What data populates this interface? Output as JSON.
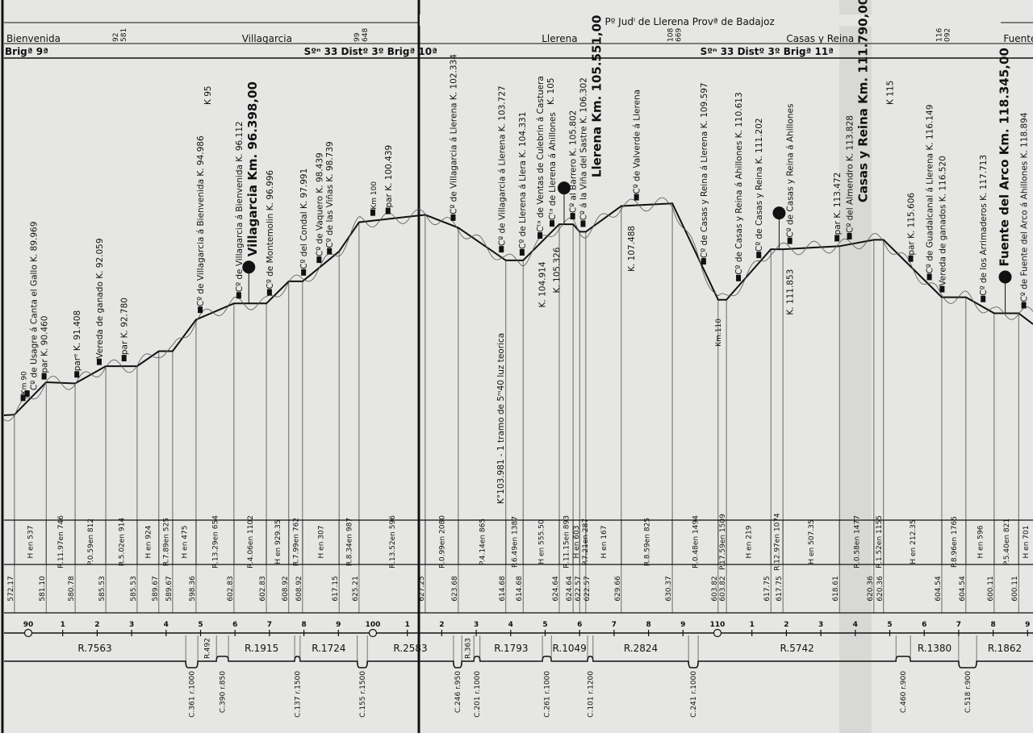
{
  "header": {
    "district_line": "Pº Judˡ de Llerena   Provª de Badajoz",
    "stations": [
      {
        "name": "Bienvenida",
        "km": 88.3
      },
      {
        "name": "Villagarcia",
        "km": 96.2
      },
      {
        "name": "Llerena",
        "km": 104.9
      },
      {
        "name": "Casas y Reina",
        "km": 111.3
      },
      {
        "name": "Fuente del A",
        "km": 118.3
      }
    ],
    "boundary_marks": [
      {
        "top": "92",
        "bottom": "581",
        "km": 92.6
      },
      {
        "top": "99",
        "bottom": "648",
        "km": 99.6
      },
      {
        "top": "108",
        "bottom": "669",
        "km": 108.7
      },
      {
        "top": "116",
        "bottom": "092",
        "km": 116.5
      }
    ],
    "sections": [
      {
        "label": "Brigª 9ª",
        "km": 90.0
      },
      {
        "label": "Sºⁿ 33   Distº 3º  Brigª 10ª",
        "km": 98.0
      },
      {
        "label": "Sºⁿ 33   Distº 3º   Brigª 11ª",
        "km": 109.5
      }
    ]
  },
  "profile_points": [
    [
      89.6,
      572.17
    ],
    [
      90.52,
      581.1
    ],
    [
      91.36,
      580.78
    ],
    [
      92.25,
      585.53
    ],
    [
      93.16,
      585.53
    ],
    [
      93.79,
      589.67
    ],
    [
      94.19,
      589.67
    ],
    [
      94.87,
      598.36
    ],
    [
      95.97,
      602.83
    ],
    [
      96.91,
      602.83
    ],
    [
      97.56,
      608.92
    ],
    [
      97.96,
      608.92
    ],
    [
      99.02,
      617.15
    ],
    [
      99.6,
      625.21
    ],
    [
      101.52,
      627.25
    ],
    [
      102.48,
      623.68
    ],
    [
      103.86,
      614.68
    ],
    [
      104.36,
      614.68
    ],
    [
      105.41,
      624.64
    ],
    [
      105.81,
      624.64
    ],
    [
      106.0,
      622.57
    ],
    [
      106.18,
      622.57
    ],
    [
      107.21,
      629.66
    ],
    [
      108.69,
      630.37
    ],
    [
      110.02,
      603.82
    ],
    [
      110.26,
      603.82
    ],
    [
      111.55,
      617.75
    ],
    [
      111.9,
      617.75
    ],
    [
      113.54,
      618.61
    ],
    [
      114.54,
      620.36
    ],
    [
      114.82,
      620.36
    ],
    [
      116.51,
      604.54
    ],
    [
      117.21,
      604.54
    ],
    [
      118.03,
      600.11
    ],
    [
      118.74,
      600.11
    ]
  ],
  "elevation_labels": [
    "572.17",
    "581.10",
    "580.78",
    "585.53",
    "585.53",
    "589.67",
    "589.67",
    "598.36",
    "602.83",
    "602.83",
    "608.92",
    "608.92",
    "617.15",
    "625.21",
    "627.25",
    "623.68",
    "614.68",
    "614.68",
    "624.64",
    "624.64",
    "622.57",
    "622.57",
    "629.66",
    "630.37",
    "603.82",
    "603.82",
    "617.75",
    "617.75",
    "618.61",
    "620.36",
    "620.36",
    "604.54",
    "604.54",
    "600.11",
    "600.11"
  ],
  "gradients": [
    "H en 537",
    "R.11.97en 746",
    "P.0.59en 812",
    "R.5.02en 914",
    "H en 924",
    "R.7.89en 525",
    "H en 475",
    "R.13.29en 654",
    "R.4.06en 1102",
    "H en 929.35",
    "R.7.99en 762",
    "H en 307",
    "R.8.34en 987",
    "R.13.52en 596",
    "R.0.99en 2080",
    "P.4.14en 865",
    "P.6.49en 1387",
    "H en 555.50",
    "R.11.15en 893",
    "H en 603",
    "P.7.21en 287",
    "H en 167",
    "R.8.59en 825",
    "R.0.48en 1494",
    "P.17.59en 1509",
    "H en 219",
    "R.12.97en 1074",
    "H en 507.35",
    "R.0.58en 1477",
    "R.1.52en 1155",
    "H en 212.35",
    "P.8.96en 1765",
    "H en 596",
    "P.5.40en 821",
    "H en 701"
  ],
  "annotations": [
    {
      "text": "Km 90",
      "km": 89.85,
      "pos": "above",
      "style": "sm"
    },
    {
      "text": "Cº de Usagre á Canta el Gallo  K. 89.969",
      "km": 89.97,
      "pos": "above"
    },
    {
      "text": "par  K. 90.460",
      "km": 90.46,
      "pos": "above"
    },
    {
      "text": "parᵉ K. 91.408",
      "km": 91.41,
      "pos": "above"
    },
    {
      "text": "Vereda  de  ganado  K. 92.059",
      "km": 92.06,
      "pos": "above"
    },
    {
      "text": "par  K. 92.780",
      "km": 92.78,
      "pos": "above"
    },
    {
      "text": "Cº de Villagarcia á Bienvenida  K. 94.986",
      "km": 94.99,
      "pos": "above"
    },
    {
      "text": "K 95",
      "km": 95.2,
      "pos": "top"
    },
    {
      "text": "Cº de Villagarcia á Bienvenida  K. 96.112",
      "km": 96.11,
      "pos": "above"
    },
    {
      "text": "Villagarcia Km. 96.398,00",
      "km": 96.4,
      "pos": "above",
      "style": "big"
    },
    {
      "text": "Cº de Montemolin  K. 96.996",
      "km": 97.0,
      "pos": "above"
    },
    {
      "text": "Cº del Condal  K. 97.991",
      "km": 97.99,
      "pos": "above"
    },
    {
      "text": "Cº de Vaquero  K. 98.439",
      "km": 98.44,
      "pos": "above"
    },
    {
      "text": "Cº de las Viñas  K. 98.739",
      "km": 98.74,
      "pos": "above"
    },
    {
      "text": "Km 100",
      "km": 100.0,
      "pos": "above",
      "style": "sm"
    },
    {
      "text": "par  K. 100.439",
      "km": 100.44,
      "pos": "above"
    },
    {
      "text": "Cº de Villagarcia á Llerena  K. 102.334",
      "km": 102.33,
      "pos": "above"
    },
    {
      "text": "Cº de Villagarcia á Llerena  K. 103.727",
      "km": 103.73,
      "pos": "above"
    },
    {
      "text": "Cº de Llerena á Llera  K. 104.331",
      "km": 104.33,
      "pos": "above"
    },
    {
      "text": "Cᵗᵃ de Ventas de Culebrin á Castuera",
      "km": 104.85,
      "pos": "above"
    },
    {
      "text": "K. 105",
      "km": 105.1,
      "pos": "top"
    },
    {
      "text": "Cᵗᵃ de Llerena á Ahillones",
      "km": 105.2,
      "pos": "above"
    },
    {
      "text": "Llerena Km. 105.551,00",
      "km": 105.55,
      "pos": "above",
      "style": "big"
    },
    {
      "text": "Cº al Barrero  K. 105.802",
      "km": 105.8,
      "pos": "above"
    },
    {
      "text": "Cº á la Viña del Sastre  K. 106.302",
      "km": 106.1,
      "pos": "above"
    },
    {
      "text": "Cº de Valverde á Llerena",
      "km": 107.65,
      "pos": "above"
    },
    {
      "text": "K. 104.914",
      "km": 104.91,
      "pos": "below"
    },
    {
      "text": "K. 105.326",
      "km": 105.33,
      "pos": "below"
    },
    {
      "text": "K. 107.488",
      "km": 107.49,
      "pos": "below"
    },
    {
      "text": "K°103.981 - 1 tramo de 5ᵐ40 luz teorica",
      "km": 103.7,
      "pos": "below",
      "style": "long"
    },
    {
      "text": "Cº de Casas y Reina á Llerena  K. 109.597",
      "km": 109.6,
      "pos": "above"
    },
    {
      "text": "Km.110",
      "km": 110.0,
      "pos": "below",
      "style": "sm"
    },
    {
      "text": "Cº de Casas y Reina á Ahillones  K. 110.613",
      "km": 110.61,
      "pos": "above"
    },
    {
      "text": "Cº de Casas y Reina  K. 111.202",
      "km": 111.2,
      "pos": "above"
    },
    {
      "text": "Casas y Reina Km. 111.790,00",
      "km": 111.79,
      "pos": "above",
      "style": "big"
    },
    {
      "text": "Cº de Casas y Reina á Ahillones",
      "km": 112.1,
      "pos": "above"
    },
    {
      "text": "K. 111.853",
      "km": 112.1,
      "pos": "below"
    },
    {
      "text": "par  K. 113.472",
      "km": 113.47,
      "pos": "above"
    },
    {
      "text": "Cº del Almendro  K. 113.828",
      "km": 113.83,
      "pos": "above"
    },
    {
      "text": "K 115",
      "km": 115.0,
      "pos": "top"
    },
    {
      "text": "par  K. 115.606",
      "km": 115.61,
      "pos": "above"
    },
    {
      "text": "Cº de Guadalcanal á Llerena  K. 116.149",
      "km": 116.15,
      "pos": "above"
    },
    {
      "text": "Vereda de ganados  K. 116.520",
      "km": 116.52,
      "pos": "above"
    },
    {
      "text": "Cº de los Arrimaderos  K. 117.713",
      "km": 117.71,
      "pos": "above"
    },
    {
      "text": "Fuente del Arco Km. 118.345,00",
      "km": 118.35,
      "pos": "above",
      "style": "big"
    },
    {
      "text": "Cº de Fuente del Arco á Ahillones  K. 118.894",
      "km": 118.89,
      "pos": "above"
    }
  ],
  "stations_dots": [
    96.4,
    105.55,
    111.79,
    118.35
  ],
  "km_scale": {
    "start": 90,
    "end": 119,
    "major_labels": {
      "90": "90",
      "100": "100",
      "110": "110"
    }
  },
  "alignment": {
    "curves": [
      {
        "label": "C.361 r.1000",
        "from": 94.57,
        "to": 94.92,
        "dir": "down"
      },
      {
        "label": "C.390 r.850",
        "from": 95.46,
        "to": 95.81,
        "dir": "up"
      },
      {
        "label": "C.137 r.1500",
        "from": 97.73,
        "to": 97.89,
        "dir": "up"
      },
      {
        "label": "C.155 r.1500",
        "from": 99.55,
        "to": 99.84,
        "dir": "down"
      },
      {
        "label": "C.246 r.950",
        "from": 102.34,
        "to": 102.58,
        "dir": "down"
      },
      {
        "label": "C.201 r.1000",
        "from": 102.93,
        "to": 103.11,
        "dir": "up"
      },
      {
        "label": "C.261 r.1000",
        "from": 104.92,
        "to": 105.18,
        "dir": "up"
      },
      {
        "label": "C.101 r.1200",
        "from": 106.23,
        "to": 106.39,
        "dir": "up"
      },
      {
        "label": "C.241 r.1000",
        "from": 109.16,
        "to": 109.44,
        "dir": "down"
      },
      {
        "label": "C.460 r.900",
        "from": 115.18,
        "to": 115.6,
        "dir": "up"
      },
      {
        "label": "C.518 r.900",
        "from": 117.0,
        "to": 117.52,
        "dir": "down"
      }
    ],
    "straights": [
      "R.7563",
      "R.492",
      "R.1915",
      "R.1724",
      "R.2583",
      "R.363",
      "R.1793",
      "R.1049",
      "R.2824",
      "R.5742",
      "R.1380",
      "R.1862"
    ]
  },
  "colors": {
    "paper": "#e6e6e4",
    "ink": "#111111",
    "ground_line": "#555555"
  }
}
